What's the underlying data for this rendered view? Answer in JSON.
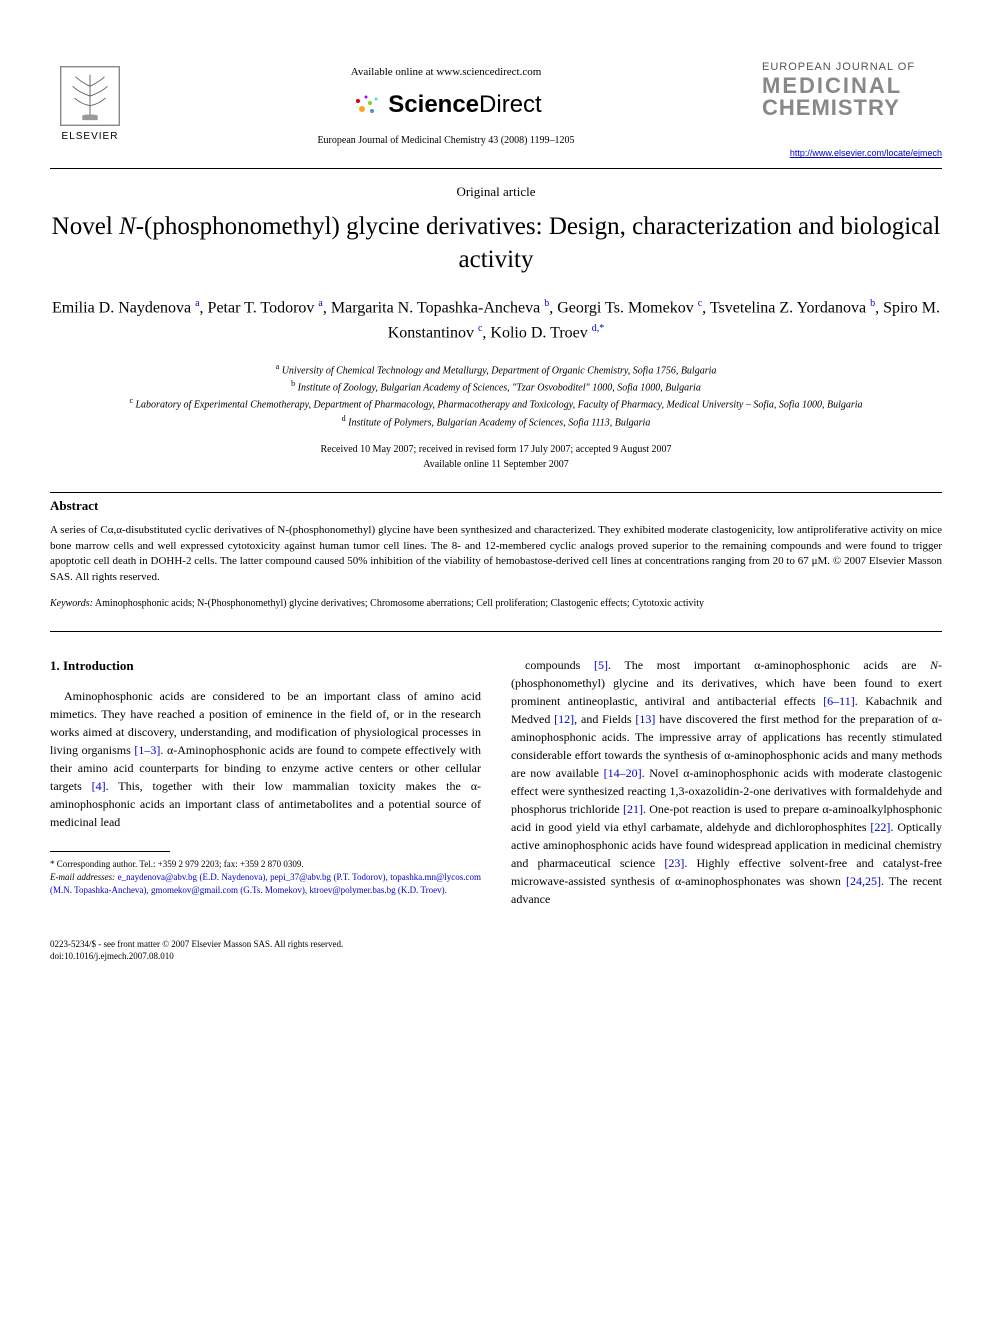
{
  "header": {
    "elsevier_label": "ELSEVIER",
    "available_online": "Available online at www.sciencedirect.com",
    "sciencedirect_brand_a": "Science",
    "sciencedirect_brand_b": "Direct",
    "citation": "European Journal of Medicinal Chemistry 43 (2008) 1199–1205",
    "journal_line1": "EUROPEAN JOURNAL OF",
    "journal_line2": "MEDICINAL",
    "journal_line3": "CHEMISTRY",
    "journal_url": "http://www.elsevier.com/locate/ejmech"
  },
  "article": {
    "type": "Original article",
    "title_pre": "Novel ",
    "title_ital": "N",
    "title_post": "-(phosphonomethyl) glycine derivatives: Design, characterization and biological activity",
    "authors_html": "Emilia D. Naydenova <sup>a</sup>, Petar T. Todorov <sup>a</sup>, Margarita N. Topashka-Ancheva <sup>b</sup>, Georgi Ts. Momekov <sup>c</sup>, Tsvetelina Z. Yordanova <sup>b</sup>, Spiro M. Konstantinov <sup>c</sup>, Kolio D. Troev <sup>d,*</sup>",
    "affiliations": [
      "a University of Chemical Technology and Metallurgy, Department of Organic Chemistry, Sofia 1756, Bulgaria",
      "b Institute of Zoology, Bulgarian Academy of Sciences, \"Tzar Osvoboditel\" 1000, Sofia 1000, Bulgaria",
      "c Laboratory of Experimental Chemotherapy, Department of Pharmacology, Pharmacotherapy and Toxicology, Faculty of Pharmacy, Medical University – Sofia, Sofia 1000, Bulgaria",
      "d Institute of Polymers, Bulgarian Academy of Sciences, Sofia 1113, Bulgaria"
    ],
    "dates_line1": "Received 10 May 2007; received in revised form 17 July 2007; accepted 9 August 2007",
    "dates_line2": "Available online 11 September 2007"
  },
  "abstract": {
    "header": "Abstract",
    "body": "A series of Cα,α-disubstituted cyclic derivatives of N-(phosphonomethyl) glycine have been synthesized and characterized. They exhibited moderate clastogenicity, low antiproliferative activity on mice bone marrow cells and well expressed cytotoxicity against human tumor cell lines. The 8- and 12-membered cyclic analogs proved superior to the remaining compounds and were found to trigger apoptotic cell death in DOHH-2 cells. The latter compound caused 50% inhibition of the viability of hemobastose-derived cell lines at concentrations ranging from 20 to 67 μM. © 2007 Elsevier Masson SAS. All rights reserved.",
    "keywords_label": "Keywords:",
    "keywords": " Aminophosphonic acids; N-(Phosphonomethyl) glycine derivatives; Chromosome aberrations; Cell proliferation; Clastogenic effects; Cytotoxic activity"
  },
  "section1": {
    "header": "1. Introduction",
    "col1": "Aminophosphonic acids are considered to be an important class of amino acid mimetics. They have reached a position of eminence in the field of, or in the research works aimed at discovery, understanding, and modification of physiological processes in living organisms [1–3]. α-Aminophosphonic acids are found to compete effectively with their amino acid counterparts for binding to enzyme active centers or other cellular targets [4]. This, together with their low mammalian toxicity makes the α-aminophosphonic acids an important class of antimetabolites and a potential source of medicinal lead",
    "col2": "compounds [5]. The most important α-aminophosphonic acids are N-(phosphonomethyl) glycine and its derivatives, which have been found to exert prominent antineoplastic, antiviral and antibacterial effects [6–11]. Kabachnik and Medved [12], and Fields [13] have discovered the first method for the preparation of α-aminophosphonic acids. The impressive array of applications has recently stimulated considerable effort towards the synthesis of α-aminophosphonic acids and many methods are now available [14–20]. Novel α-aminophosphonic acids with moderate clastogenic effect were synthesized reacting 1,3-oxazolidin-2-one derivatives with formaldehyde and phosphorus trichloride [21]. One-pot reaction is used to prepare α-aminoalkylphosphonic acid in good yield via ethyl carbamate, aldehyde and dichlorophosphites [22]. Optically active aminophosphonic acids have found widespread application in medicinal chemistry and pharmaceutical science [23]. Highly effective solvent-free and catalyst-free microwave-assisted synthesis of α-aminophosphonates was shown [24,25]. The recent advance"
  },
  "footnotes": {
    "corresponding": "* Corresponding author. Tel.: +359 2 979 2203; fax: +359 2 870 0309.",
    "email_label": "E-mail addresses:",
    "emails": " e_naydenova@abv.bg (E.D. Naydenova), pepi_37@abv.bg (P.T. Todorov), topashka.mn@lycos.com (M.N. Topashka-Ancheva), gmomekov@gmail.com (G.Ts. Momekov), ktroev@polymer.bas.bg (K.D. Troev)."
  },
  "footer": {
    "line1": "0223-5234/$ - see front matter © 2007 Elsevier Masson SAS. All rights reserved.",
    "line2": "doi:10.1016/j.ejmech.2007.08.010"
  },
  "colors": {
    "link": "#0000cc",
    "text": "#000000",
    "grey": "#888888"
  }
}
